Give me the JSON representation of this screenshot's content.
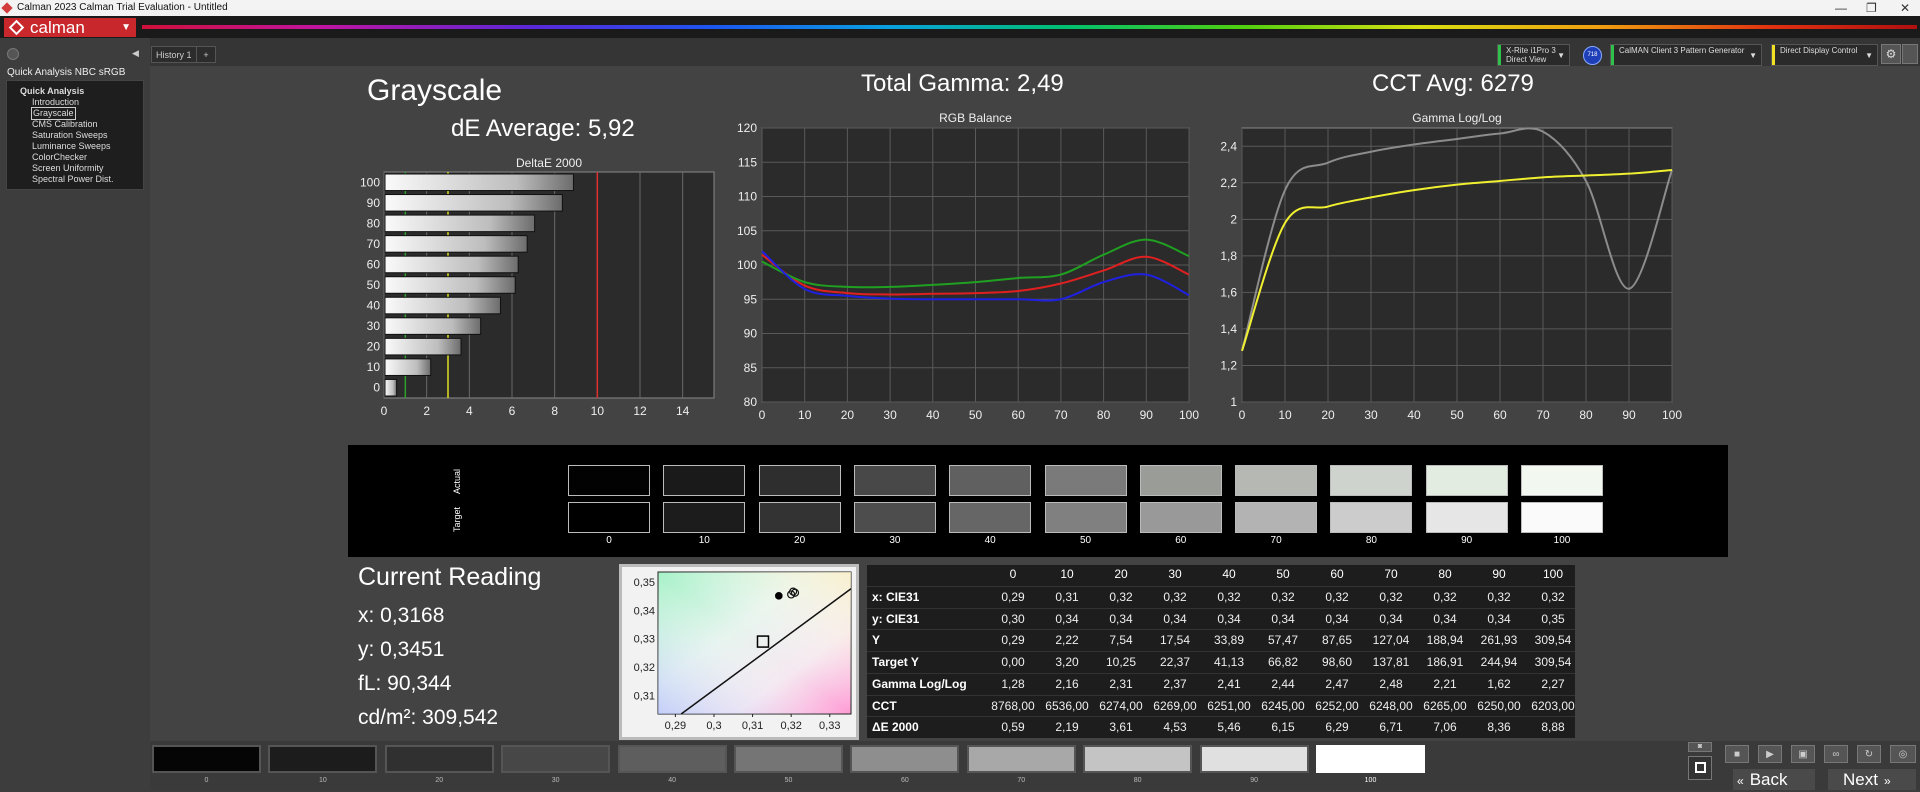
{
  "app": {
    "window_title": "Calman 2023 Calman Trial Evaluation  - Untitled",
    "logo_text": "calman",
    "history_tab": "History 1",
    "add_tab": "+"
  },
  "devices": {
    "meter": {
      "line1": "X-Rite i1Pro 3",
      "line2": "Direct View",
      "color": "#2ec24a"
    },
    "badge": "718",
    "pattern_generator": {
      "label": "CalMAN Client 3 Pattern Generator",
      "color": "#2ec24a"
    },
    "display_control": {
      "label": "Direct Display Control",
      "color": "#f0e020"
    }
  },
  "sidebar": {
    "title": "Quick Analysis NBC sRGB",
    "root": "Quick Analysis",
    "items": [
      "Introduction",
      "Grayscale",
      "CMS Calibration",
      "Saturation Sweeps",
      "Luminance Sweeps",
      "ColorChecker",
      "Screen Uniformity",
      "Spectral Power Dist."
    ],
    "selected": "Grayscale"
  },
  "main": {
    "page_title": "Grayscale",
    "de_average": "dE Average: 5,92",
    "total_gamma": "Total Gamma: 2,49",
    "cct_avg": "CCT Avg: 6279"
  },
  "chart_data": [
    {
      "type": "bar",
      "title": "DeltaE 2000",
      "categories": [
        "100",
        "90",
        "80",
        "70",
        "60",
        "50",
        "40",
        "30",
        "20",
        "10",
        "0"
      ],
      "values": [
        8.88,
        8.36,
        7.06,
        6.71,
        6.29,
        6.15,
        5.46,
        4.53,
        3.61,
        2.19,
        0.59
      ],
      "xlim": [
        0,
        15
      ],
      "xticks": [
        "0",
        "2",
        "4",
        "6",
        "8",
        "10",
        "12",
        "14"
      ],
      "thresholds": [
        {
          "value": 1,
          "color": "#2ea02e"
        },
        {
          "value": 3,
          "color": "#e0e020"
        },
        {
          "value": 10,
          "color": "#e03030"
        }
      ]
    },
    {
      "type": "line",
      "title": "RGB Balance",
      "x": [
        0,
        10,
        20,
        30,
        40,
        50,
        60,
        70,
        80,
        90,
        100
      ],
      "ylim": [
        80,
        120
      ],
      "yticks": [
        "120",
        "115",
        "110",
        "105",
        "100",
        "95",
        "90",
        "85",
        "80"
      ],
      "xticks": [
        "0",
        "10",
        "20",
        "30",
        "40",
        "50",
        "60",
        "70",
        "80",
        "90",
        "100"
      ],
      "series": [
        {
          "color": "#e02020",
          "values": [
            101.5,
            97,
            95.9,
            95.7,
            95.8,
            95.9,
            96.2,
            97.3,
            99.2,
            101.2,
            98.6
          ]
        },
        {
          "color": "#20a020",
          "values": [
            100.5,
            97.5,
            96.8,
            96.8,
            97.1,
            97.5,
            98.1,
            98.6,
            101.5,
            103.7,
            101.3
          ]
        },
        {
          "color": "#2020e0",
          "values": [
            102,
            96.5,
            95.5,
            95.1,
            95,
            95,
            95,
            95,
            97.5,
            98.6,
            95.6
          ]
        }
      ]
    },
    {
      "type": "line",
      "title": "Gamma Log/Log",
      "x": [
        0,
        10,
        20,
        30,
        40,
        50,
        60,
        70,
        80,
        90,
        100
      ],
      "ylim": [
        1,
        2.5
      ],
      "yticks": [
        "2,4",
        "2,2",
        "2",
        "1,8",
        "1,6",
        "1,4",
        "1,2",
        "1"
      ],
      "xticks": [
        "0",
        "10",
        "20",
        "30",
        "40",
        "50",
        "60",
        "70",
        "80",
        "90",
        "100"
      ],
      "series": [
        {
          "color": "#8c8c8c",
          "values": [
            1.28,
            2.16,
            2.31,
            2.37,
            2.41,
            2.44,
            2.47,
            2.48,
            2.21,
            1.62,
            2.27
          ]
        },
        {
          "color": "#f0f030",
          "values": [
            1.28,
            1.98,
            2.07,
            2.12,
            2.16,
            2.19,
            2.21,
            2.23,
            2.24,
            2.25,
            2.27
          ]
        }
      ]
    },
    {
      "type": "scatter",
      "title": "",
      "xticks": [
        "0,29",
        "0,3",
        "0,31",
        "0,32",
        "0,33"
      ],
      "yticks": [
        "0,35",
        "0,34",
        "0,33",
        "0,32",
        "0,31"
      ],
      "points": [
        {
          "x": 0.3168,
          "y": 0.3451
        }
      ],
      "target": {
        "x": 0.3127,
        "y": 0.329
      },
      "measured_cluster": [
        {
          "x": 0.321,
          "y": 0.3462
        },
        {
          "x": 0.32,
          "y": 0.3456
        },
        {
          "x": 0.3205,
          "y": 0.3466
        }
      ]
    }
  ],
  "swatches": {
    "actual_label": "Actual",
    "target_label": "Target",
    "levels": [
      "0",
      "10",
      "20",
      "30",
      "40",
      "50",
      "60",
      "70",
      "80",
      "90",
      "100"
    ],
    "actual_colors": [
      "#020202",
      "#1a1a1a",
      "#2e2e2e",
      "#484848",
      "#606060",
      "#7a7a7a",
      "#9a9c98",
      "#b6b8b4",
      "#cfd3cd",
      "#e2ece0",
      "#f2f8f0"
    ],
    "target_colors": [
      "#000000",
      "#1c1c1c",
      "#333333",
      "#4d4d4d",
      "#666666",
      "#808080",
      "#999999",
      "#b3b3b3",
      "#cccccc",
      "#e6e6e6",
      "#fafafa"
    ]
  },
  "current_reading": {
    "title": "Current Reading",
    "x": "x: 0,3168",
    "y": "y: 0,3451",
    "fl": "fL: 90,344",
    "cdm2": "cd/m²: 309,542"
  },
  "table": {
    "columns": [
      "0",
      "10",
      "20",
      "30",
      "40",
      "50",
      "60",
      "70",
      "80",
      "90",
      "100"
    ],
    "rows": [
      {
        "label": "x: CIE31",
        "values": [
          "0,29",
          "0,31",
          "0,32",
          "0,32",
          "0,32",
          "0,32",
          "0,32",
          "0,32",
          "0,32",
          "0,32",
          "0,32"
        ]
      },
      {
        "label": "y: CIE31",
        "values": [
          "0,30",
          "0,34",
          "0,34",
          "0,34",
          "0,34",
          "0,34",
          "0,34",
          "0,34",
          "0,34",
          "0,34",
          "0,35"
        ]
      },
      {
        "label": "Y",
        "values": [
          "0,29",
          "2,22",
          "7,54",
          "17,54",
          "33,89",
          "57,47",
          "87,65",
          "127,04",
          "188,94",
          "261,93",
          "309,54"
        ]
      },
      {
        "label": "Target Y",
        "values": [
          "0,00",
          "3,20",
          "10,25",
          "22,37",
          "41,13",
          "66,82",
          "98,60",
          "137,81",
          "186,91",
          "244,94",
          "309,54"
        ]
      },
      {
        "label": "Gamma Log/Log",
        "values": [
          "1,28",
          "2,16",
          "2,31",
          "2,37",
          "2,41",
          "2,44",
          "2,47",
          "2,48",
          "2,21",
          "1,62",
          "2,27"
        ]
      },
      {
        "label": "CCT",
        "values": [
          "8768,00",
          "6536,00",
          "6274,00",
          "6269,00",
          "6251,00",
          "6245,00",
          "6252,00",
          "6248,00",
          "6265,00",
          "6250,00",
          "6203,00"
        ]
      },
      {
        "label": "ΔE 2000",
        "values": [
          "0,59",
          "2,19",
          "3,61",
          "4,53",
          "5,46",
          "6,15",
          "6,29",
          "6,71",
          "7,06",
          "8,36",
          "8,88"
        ]
      }
    ]
  },
  "bottom_strip": {
    "levels": [
      "0",
      "10",
      "20",
      "30",
      "40",
      "50",
      "60",
      "70",
      "80",
      "90",
      "100"
    ],
    "colors": [
      "#050505",
      "#1c1c1c",
      "#303030",
      "#474747",
      "#5e5e5e",
      "#757575",
      "#8e8e8e",
      "#a8a8a8",
      "#c4c4c4",
      "#e0e0e0",
      "#ffffff"
    ],
    "selected": "100"
  },
  "navigation": {
    "back": "Back",
    "next": "Next"
  }
}
